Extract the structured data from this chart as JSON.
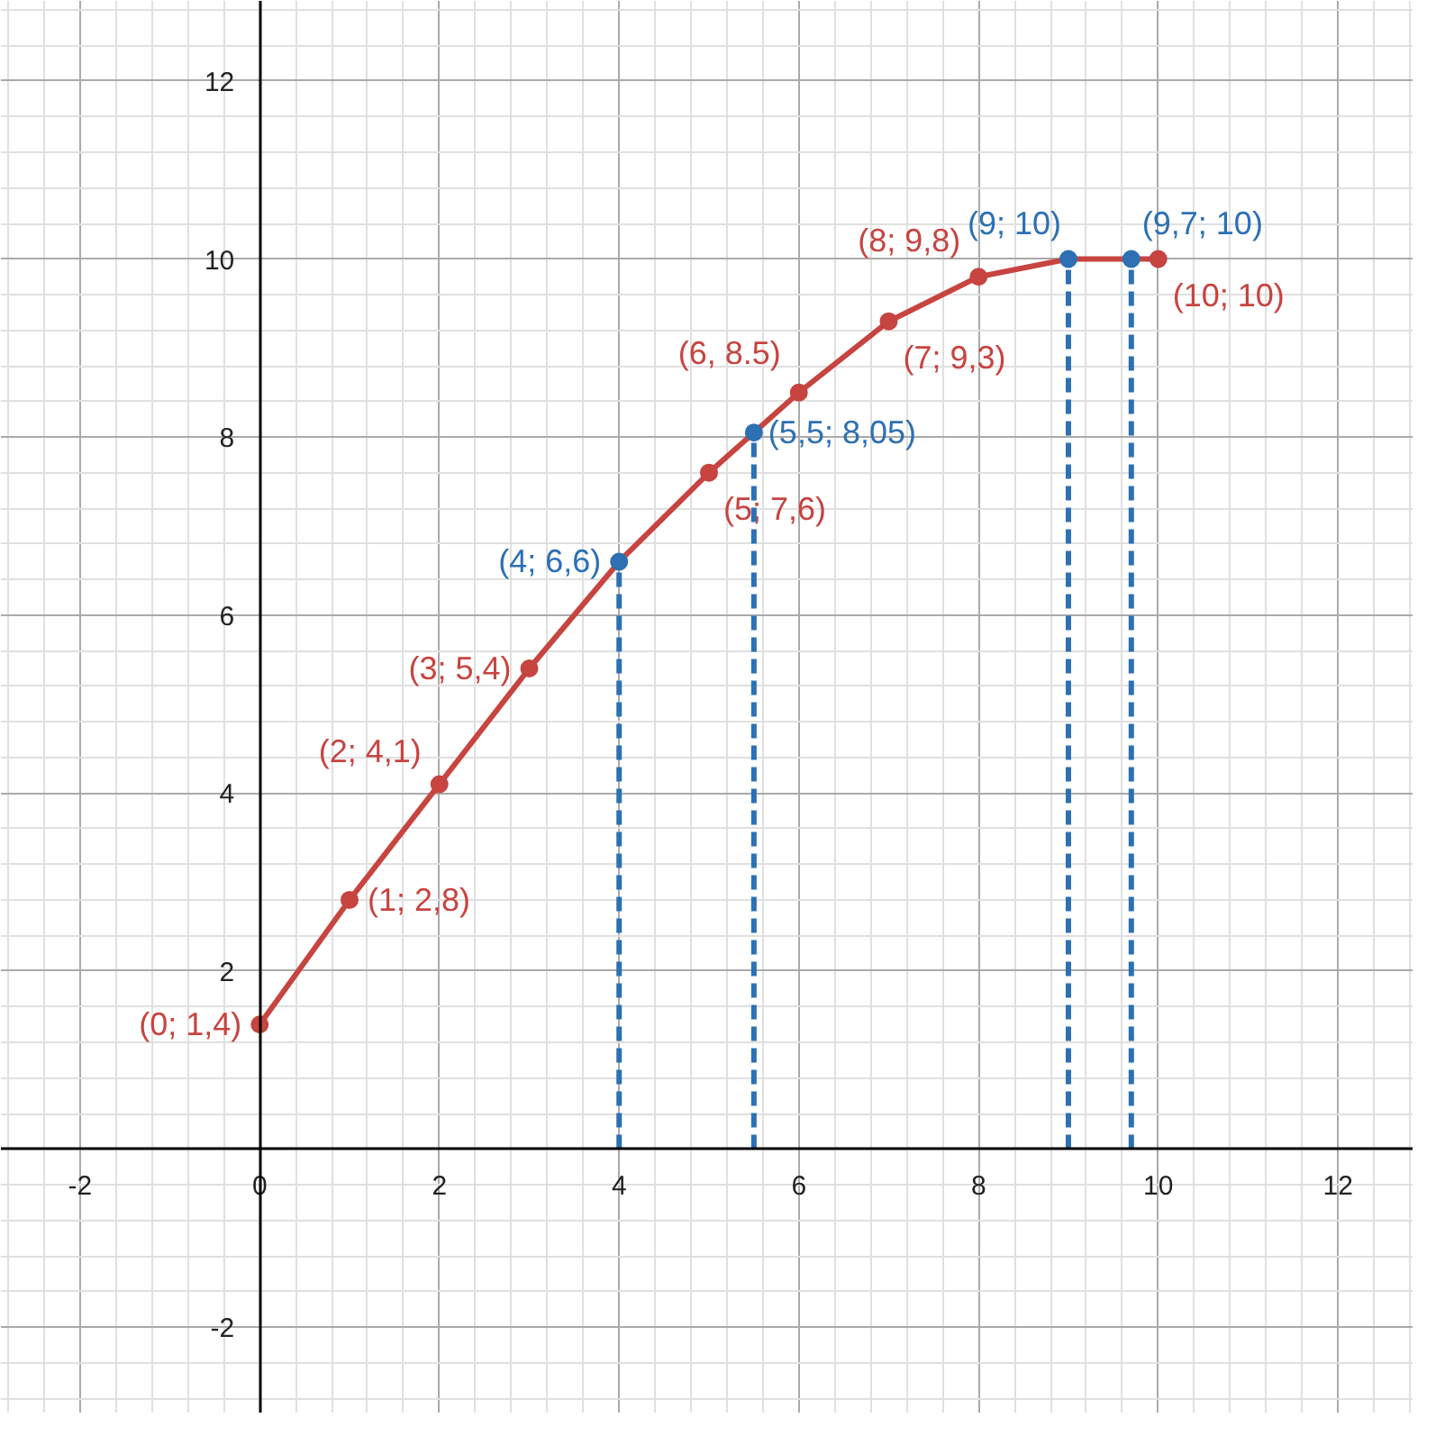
{
  "chart_data": {
    "type": "line",
    "xlim": [
      -2.88,
      12.84
    ],
    "ylim": [
      -2.97,
      12.9
    ],
    "xticks": [
      -2,
      0,
      2,
      4,
      6,
      8,
      10,
      12
    ],
    "yticks": [
      -2,
      2,
      4,
      6,
      8,
      10,
      12
    ],
    "grid": true,
    "line_style": "solid",
    "series": [
      {
        "color": "#c74440",
        "x": [
          0,
          1,
          2,
          3,
          4,
          5,
          6,
          7,
          8,
          9,
          10
        ],
        "values": [
          1.4,
          2.8,
          4.1,
          5.4,
          6.6,
          7.6,
          8.5,
          9.3,
          9.8,
          10,
          10
        ],
        "marker": "none"
      },
      {
        "type": "scatter",
        "color": "#c74440",
        "x": [
          0,
          1,
          2,
          3,
          5,
          6,
          7,
          8,
          10
        ],
        "values": [
          1.4,
          2.8,
          4.1,
          5.4,
          7.6,
          8.5,
          9.3,
          9.8,
          10
        ],
        "marker": "circle",
        "value_labels": [
          "(0; 1,4)",
          "(1; 2,8)",
          "(2; 4,1)",
          "(3; 5,4)",
          "(5; 7,6)",
          "(6, 8.5)",
          "(7; 9,3)",
          "(8; 9,8)",
          "(10; 10)"
        ]
      },
      {
        "type": "lollipop",
        "color": "#2d70b3",
        "x": [
          4,
          5.5,
          9,
          9.7
        ],
        "values": [
          6.6,
          8.05,
          10,
          10
        ],
        "marker": "circle",
        "line_style": "dashed",
        "value_labels": [
          "(4; 6,6)",
          "(5,5; 8,05)",
          "(9; 10)",
          "(9,7; 10)"
        ]
      }
    ]
  }
}
